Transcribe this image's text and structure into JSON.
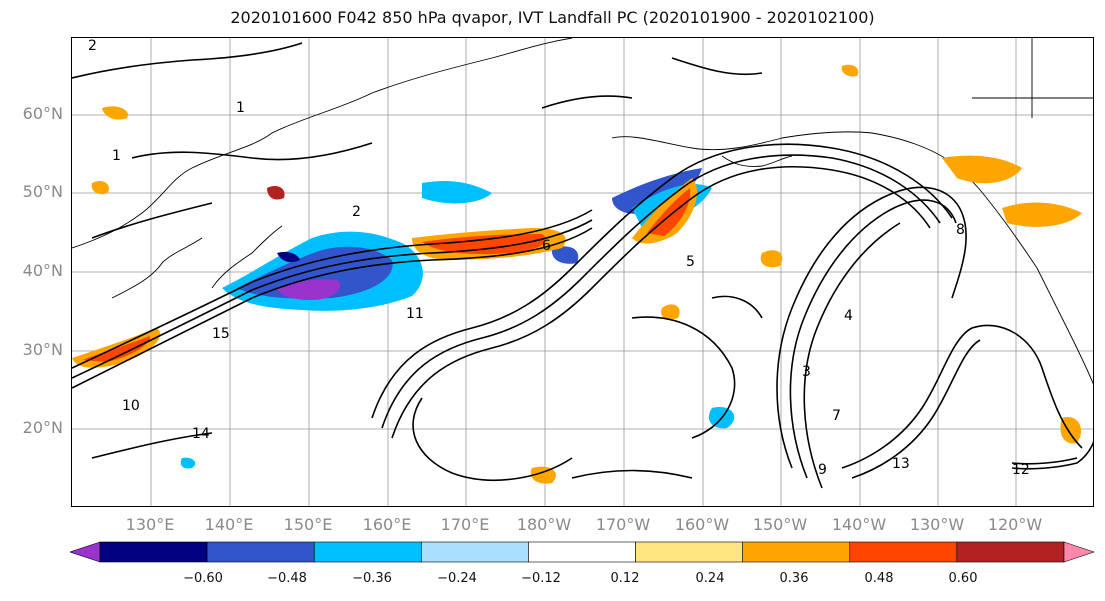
{
  "title": "2020101600 F042 850 hPa qvapor, IVT Landfall PC (2020101900 - 2020102100)",
  "lat_labels": [
    "60°N",
    "50°N",
    "40°N",
    "30°N",
    "20°N"
  ],
  "lon_labels": [
    "130°E",
    "140°E",
    "150°E",
    "160°E",
    "170°E",
    "180°W",
    "170°W",
    "160°W",
    "150°W",
    "140°W",
    "130°W",
    "120°W"
  ],
  "contour_labels": [
    "2",
    "1",
    "1",
    "2",
    "4",
    "6",
    "8",
    "10",
    "12",
    "14",
    "3",
    "5",
    "7",
    "9",
    "11",
    "13",
    "15"
  ],
  "colorbar": {
    "ticks": [
      "−0.60",
      "−0.48",
      "−0.36",
      "−0.24",
      "−0.12",
      "0.12",
      "0.24",
      "0.36",
      "0.48",
      "0.60"
    ],
    "colors": [
      "#9933cc",
      "#000080",
      "#3355cc",
      "#00bfff",
      "#aadfff",
      "#ffffff",
      "#ffe680",
      "#ffa500",
      "#ff4500",
      "#b22222",
      "#ff88aa"
    ]
  }
}
